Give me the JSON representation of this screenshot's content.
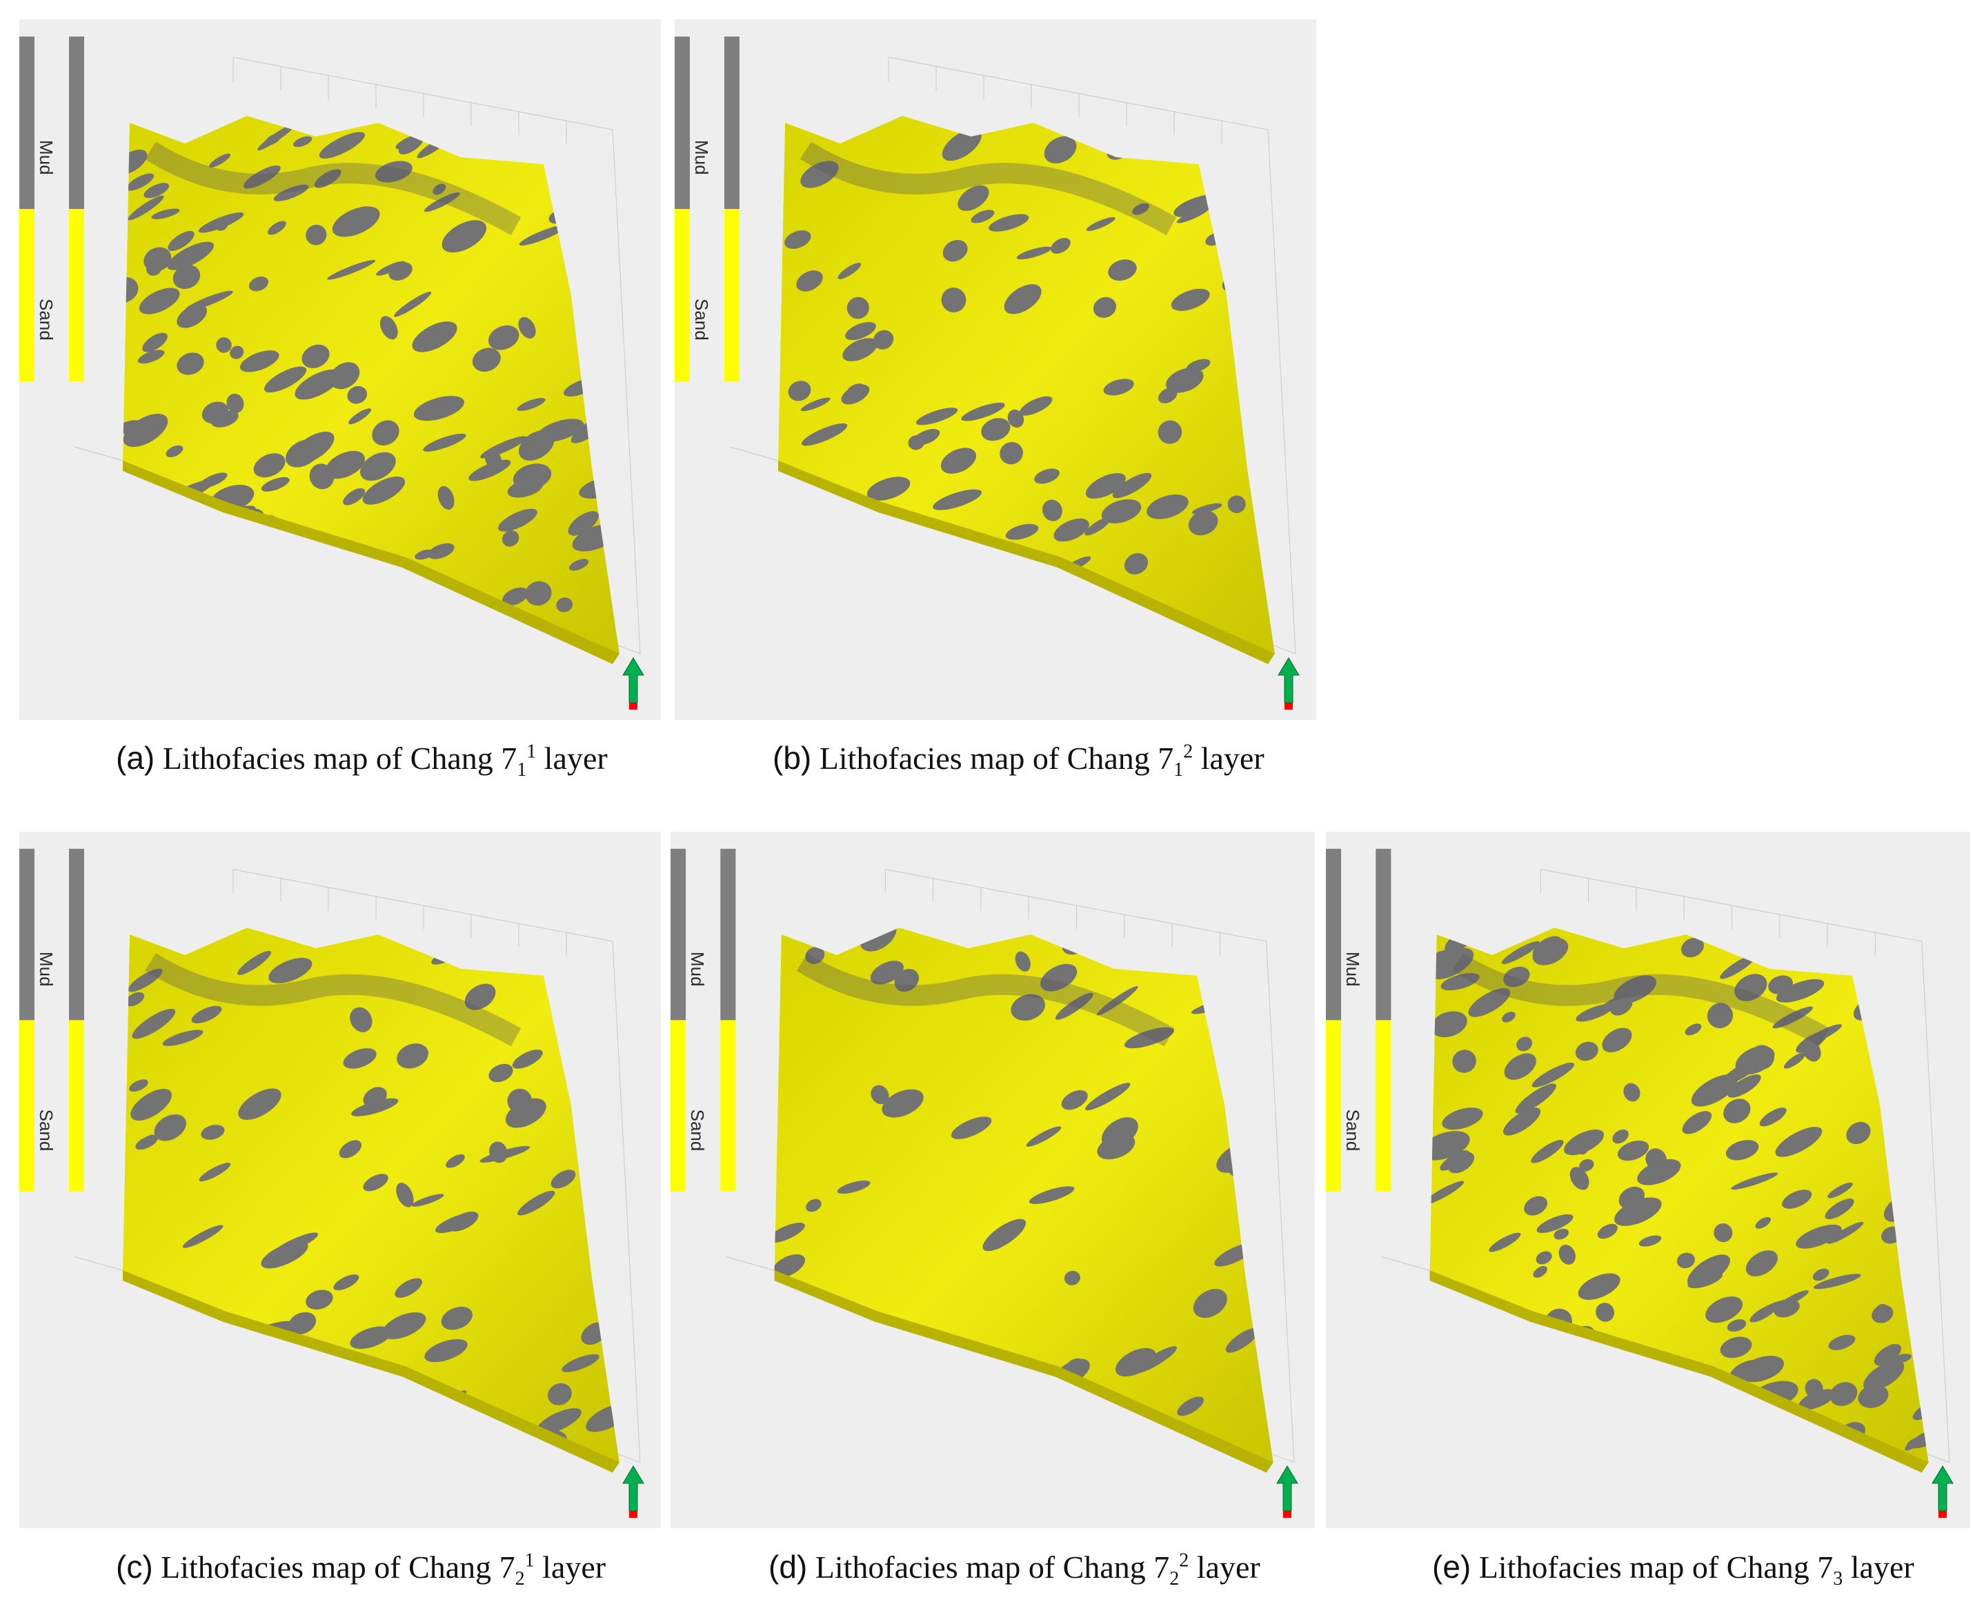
{
  "legend": {
    "mud_label": "Mud",
    "sand_label": "Sand",
    "mud_color": "#7f7f7f",
    "sand_color": "#ffff00"
  },
  "surface": {
    "sand_fill": "#e4e000",
    "mud_fill": "#737373"
  },
  "panels": [
    {
      "id": "a",
      "letter": "(a)",
      "caption_text": "Lithofacies map of Chang 7",
      "sub": "1",
      "sup": "1",
      "suffix": " layer",
      "mud_fraction": 0.5
    },
    {
      "id": "b",
      "letter": "(b)",
      "caption_text": "Lithofacies map of Chang 7",
      "sub": "1",
      "sup": "2",
      "suffix": " layer",
      "mud_fraction": 0.3
    },
    {
      "id": "c",
      "letter": "(c)",
      "caption_text": "Lithofacies map of Chang 7",
      "sub": "2",
      "sup": "1",
      "suffix": " layer",
      "mud_fraction": 0.3
    },
    {
      "id": "d",
      "letter": "(d)",
      "caption_text": "Lithofacies map of Chang 7",
      "sub": "2",
      "sup": "2",
      "suffix": " layer",
      "mud_fraction": 0.15
    },
    {
      "id": "e",
      "letter": "(e)",
      "caption_text": "Lithofacies map of Chang 7",
      "sub": "3",
      "sup": "",
      "suffix": " layer",
      "mud_fraction": 0.55
    }
  ],
  "north_arrow": {
    "icon": "north-arrow-icon",
    "colors": [
      "#00b050",
      "#ff0000"
    ]
  }
}
